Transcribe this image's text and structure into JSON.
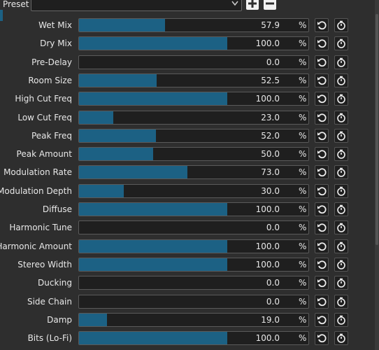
{
  "preset": {
    "label": "Preset"
  },
  "params": [
    {
      "name": "Wet Mix",
      "value": 57.9,
      "label": "57.9",
      "unit": "%"
    },
    {
      "name": "Dry Mix",
      "value": 100,
      "label": "100.0",
      "unit": "%"
    },
    {
      "name": "Pre-Delay",
      "value": 0,
      "label": "0.0",
      "unit": "%"
    },
    {
      "name": "Room Size",
      "value": 52.5,
      "label": "52.5",
      "unit": "%"
    },
    {
      "name": "High Cut Freq",
      "value": 100,
      "label": "100.0",
      "unit": "%"
    },
    {
      "name": "Low Cut Freq",
      "value": 23,
      "label": "23.0",
      "unit": "%"
    },
    {
      "name": "Peak Freq",
      "value": 52,
      "label": "52.0",
      "unit": "%"
    },
    {
      "name": "Peak Amount",
      "value": 50,
      "label": "50.0",
      "unit": "%"
    },
    {
      "name": "Modulation Rate",
      "value": 73,
      "label": "73.0",
      "unit": "%"
    },
    {
      "name": "Modulation Depth",
      "value": 30,
      "label": "30.0",
      "unit": "%"
    },
    {
      "name": "Diffuse",
      "value": 100,
      "label": "100.0",
      "unit": "%"
    },
    {
      "name": "Harmonic Tune",
      "value": 0,
      "label": "0.0",
      "unit": "%"
    },
    {
      "name": "Harmonic Amount",
      "value": 100,
      "label": "100.0",
      "unit": "%"
    },
    {
      "name": "Stereo Width",
      "value": 100,
      "label": "100.0",
      "unit": "%"
    },
    {
      "name": "Ducking",
      "value": 0,
      "label": "0.0",
      "unit": "%"
    },
    {
      "name": "Side Chain",
      "value": 0,
      "label": "0.0",
      "unit": "%"
    },
    {
      "name": "Damp",
      "value": 19,
      "label": "19.0",
      "unit": "%"
    },
    {
      "name": "Bits (Lo-Fi)",
      "value": 100,
      "label": "100.0",
      "unit": "%"
    }
  ]
}
